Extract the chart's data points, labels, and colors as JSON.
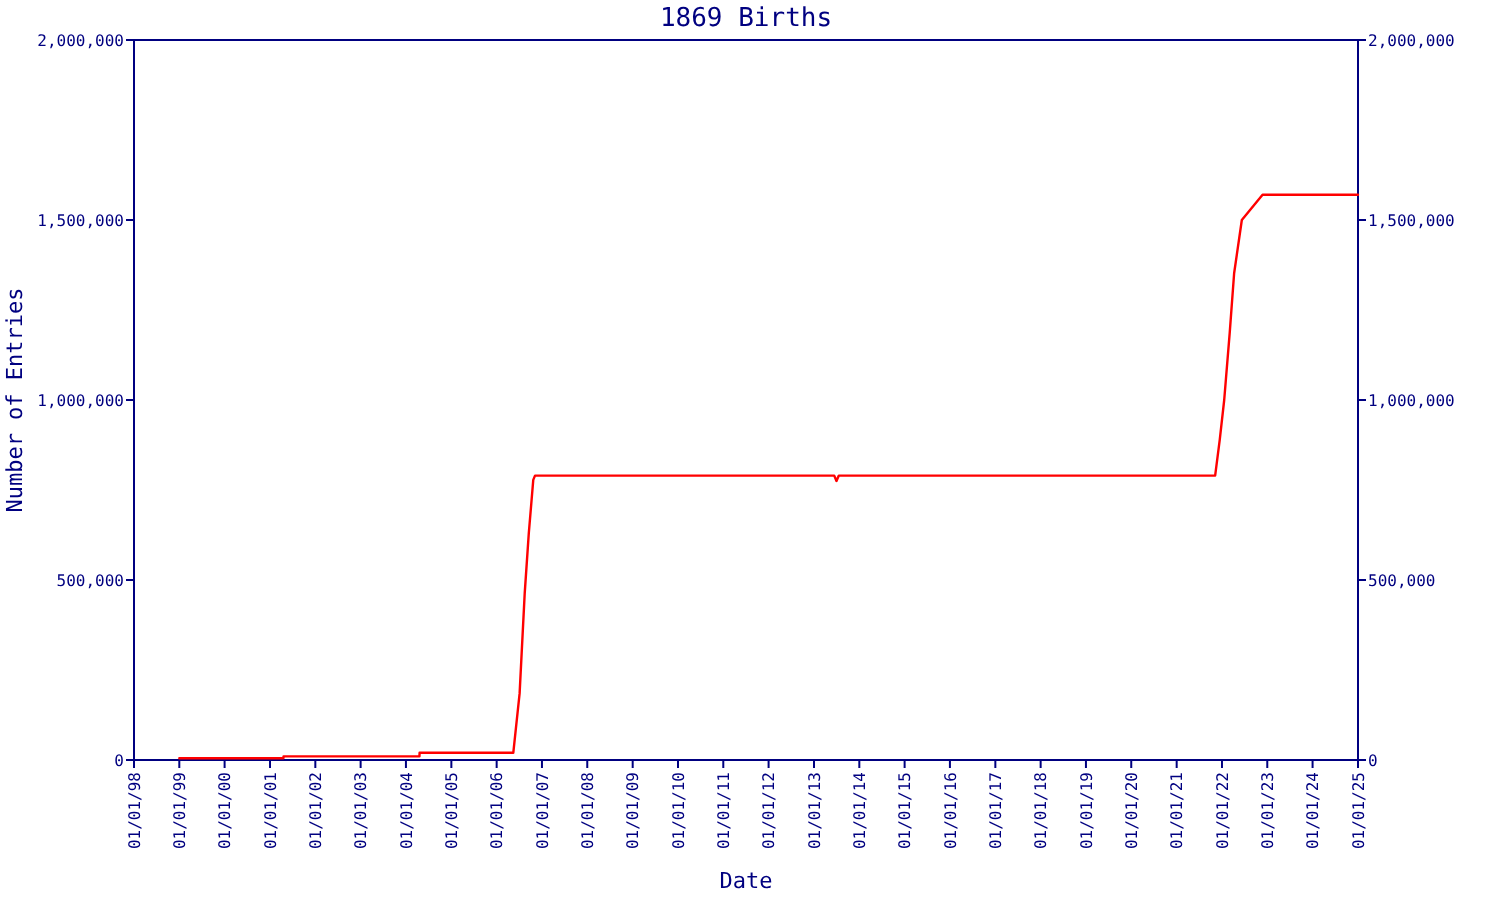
{
  "chart_data": {
    "type": "line",
    "title": "1869 Births",
    "xlabel": "Date",
    "ylabel": "Number of Entries",
    "x": [
      "1999-01-01",
      "2001-04-19",
      "2001-04-20",
      "2004-04-19",
      "2004-04-20",
      "2006-05-15",
      "2006-07-05",
      "2006-08-15",
      "2006-09-17",
      "2006-10-23",
      "2006-11-06",
      "2013-06-13",
      "2013-07-01",
      "2013-07-20",
      "2021-11-07",
      "2021-12-14",
      "2022-01-19",
      "2022-03-04",
      "2022-04-09",
      "2022-06-10",
      "2022-11-24",
      "2025-01-01"
    ],
    "series": [
      {
        "color": "#ff0000",
        "values": [
          5000,
          5000,
          10000,
          10000,
          20000,
          20000,
          185000,
          463000,
          630000,
          778000,
          790000,
          790000,
          775000,
          790000,
          790000,
          889000,
          1000000,
          1185000,
          1352000,
          1500000,
          1570000,
          1570000
        ]
      }
    ],
    "xlim": [
      "1998-01-01",
      "2025-01-01"
    ],
    "xticks": [
      {
        "value": "1998-01-01",
        "label": "01/01/98"
      },
      {
        "value": "1999-01-01",
        "label": "01/01/99"
      },
      {
        "value": "2000-01-01",
        "label": "01/01/00"
      },
      {
        "value": "2001-01-01",
        "label": "01/01/01"
      },
      {
        "value": "2002-01-01",
        "label": "01/01/02"
      },
      {
        "value": "2003-01-01",
        "label": "01/01/03"
      },
      {
        "value": "2004-01-01",
        "label": "01/01/04"
      },
      {
        "value": "2005-01-01",
        "label": "01/01/05"
      },
      {
        "value": "2006-01-01",
        "label": "01/01/06"
      },
      {
        "value": "2007-01-01",
        "label": "01/01/07"
      },
      {
        "value": "2008-01-01",
        "label": "01/01/08"
      },
      {
        "value": "2009-01-01",
        "label": "01/01/09"
      },
      {
        "value": "2010-01-01",
        "label": "01/01/10"
      },
      {
        "value": "2011-01-01",
        "label": "01/01/11"
      },
      {
        "value": "2012-01-01",
        "label": "01/01/12"
      },
      {
        "value": "2013-01-01",
        "label": "01/01/13"
      },
      {
        "value": "2014-01-01",
        "label": "01/01/14"
      },
      {
        "value": "2015-01-01",
        "label": "01/01/15"
      },
      {
        "value": "2016-01-01",
        "label": "01/01/16"
      },
      {
        "value": "2017-01-01",
        "label": "01/01/17"
      },
      {
        "value": "2018-01-01",
        "label": "01/01/18"
      },
      {
        "value": "2019-01-01",
        "label": "01/01/19"
      },
      {
        "value": "2020-01-01",
        "label": "01/01/20"
      },
      {
        "value": "2021-01-01",
        "label": "01/01/21"
      },
      {
        "value": "2022-01-01",
        "label": "01/01/22"
      },
      {
        "value": "2023-01-01",
        "label": "01/01/23"
      },
      {
        "value": "2024-01-01",
        "label": "01/01/24"
      },
      {
        "value": "2025-01-01",
        "label": "01/01/25"
      }
    ],
    "ylim": [
      0,
      2000000
    ],
    "yticks": [
      0,
      {
        "value": 500000,
        "label": "500,000"
      },
      {
        "value": 1000000,
        "label": "1,000,000"
      },
      {
        "value": 1500000,
        "label": "1,500,000"
      },
      {
        "value": 2000000,
        "label": "2,000,000"
      }
    ],
    "y2lim": [
      0,
      2000000
    ],
    "y2ticks": [
      0,
      {
        "value": 500000,
        "label": "500,000"
      },
      {
        "value": 1000000,
        "label": "1,000,000"
      },
      {
        "value": 1500000,
        "label": "1,500,000"
      },
      {
        "value": 2000000,
        "label": "2,000,000"
      }
    ],
    "grid": false,
    "marker": "none",
    "line_style": "solid"
  }
}
